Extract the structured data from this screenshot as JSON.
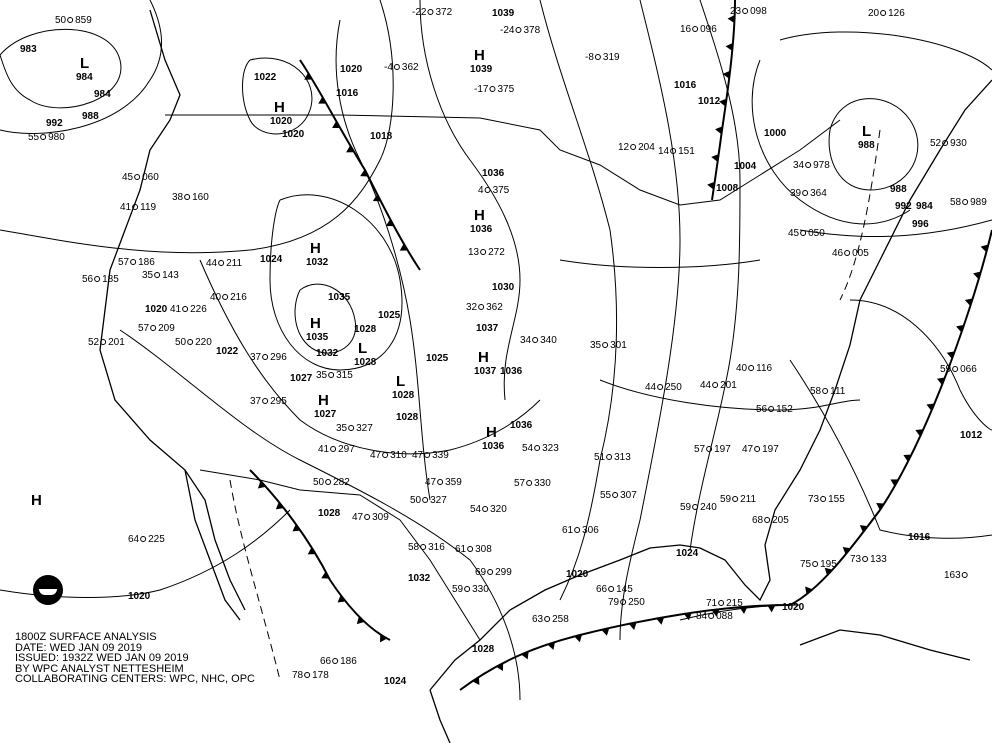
{
  "caption": {
    "title": "1800Z SURFACE ANALYSIS",
    "date": "DATE: WED JAN 09 2019",
    "issued": "ISSUED: 1932Z WED JAN 09 2019",
    "analyst": "BY WPC ANALYST NETTESHEIM",
    "centers": "COLLABORATING CENTERS: WPC, NHC, OPC"
  },
  "logo": "NOAA",
  "colors": {
    "ink": "#000000",
    "background": "#ffffff"
  },
  "pressure_centers": [
    {
      "type": "L",
      "value": "984"
    },
    {
      "type": "H",
      "value": "1020"
    },
    {
      "type": "H",
      "value": "1039"
    },
    {
      "type": "H",
      "value": "1036"
    },
    {
      "type": "H",
      "value": "1032"
    },
    {
      "type": "H",
      "value": "1035"
    },
    {
      "type": "L",
      "value": "1028"
    },
    {
      "type": "L",
      "value": "1028"
    },
    {
      "type": "H",
      "value": "1037"
    },
    {
      "type": "H",
      "value": "1036"
    },
    {
      "type": "H",
      "value": "1027"
    },
    {
      "type": "H",
      "value": ""
    },
    {
      "type": "L",
      "value": "988"
    }
  ],
  "isobar_labels": [
    "983",
    "984",
    "988",
    "992",
    "1022",
    "1020",
    "1016",
    "1018",
    "1020",
    "1039",
    "1036",
    "1024",
    "1035",
    "1025",
    "1028",
    "1032",
    "1037",
    "1036",
    "1025",
    "1028",
    "1027",
    "1022",
    "1020",
    "1030",
    "1036",
    "1028",
    "1032",
    "1020",
    "1024",
    "1028",
    "1024",
    "1020",
    "1016",
    "1012",
    "996",
    "992",
    "984",
    "988",
    "1000",
    "1004",
    "1008",
    "1012",
    "1016",
    "1020"
  ],
  "stations": [
    [
      "50",
      "859"
    ],
    [
      "55",
      "980"
    ],
    [
      "45",
      "060"
    ],
    [
      "41",
      "119"
    ],
    [
      "38",
      "160"
    ],
    [
      "56",
      "185"
    ],
    [
      "57",
      "186"
    ],
    [
      "35",
      "143"
    ],
    [
      "44",
      "211"
    ],
    [
      "40",
      "216"
    ],
    [
      "41",
      "226"
    ],
    [
      "57",
      "209"
    ],
    [
      "52",
      "201"
    ],
    [
      "50",
      "220"
    ],
    [
      "37",
      "296"
    ],
    [
      "37",
      "295"
    ],
    [
      "35",
      "315"
    ],
    [
      "35",
      "327"
    ],
    [
      "41",
      "297"
    ],
    [
      "47",
      "310"
    ],
    [
      "47",
      "339"
    ],
    [
      "47",
      "359"
    ],
    [
      "50",
      "327"
    ],
    [
      "50",
      "282"
    ],
    [
      "47",
      "309"
    ],
    [
      "54",
      "320"
    ],
    [
      "58",
      "316"
    ],
    [
      "61",
      "308"
    ],
    [
      "59",
      "330"
    ],
    [
      "69",
      "299"
    ],
    [
      "61",
      "306"
    ],
    [
      "63",
      "258"
    ],
    [
      "71",
      "215"
    ],
    [
      "73",
      "155"
    ],
    [
      "75",
      "195"
    ],
    [
      "73",
      "133"
    ],
    [
      "163",
      ""
    ],
    [
      "56",
      "152"
    ],
    [
      "58",
      "111"
    ],
    [
      "59",
      "066"
    ],
    [
      "52",
      "930"
    ],
    [
      "58",
      "989"
    ],
    [
      "46",
      "005"
    ],
    [
      "45",
      "050"
    ],
    [
      "39",
      "364"
    ],
    [
      "34",
      "978"
    ],
    [
      "23",
      "098"
    ],
    [
      "20",
      "126"
    ],
    [
      "16",
      "096"
    ],
    [
      "12",
      "204"
    ],
    [
      "14",
      "151"
    ],
    [
      "-4",
      "362"
    ],
    [
      "-22",
      "372"
    ],
    [
      "-24",
      "378"
    ],
    [
      "-8",
      "319"
    ],
    [
      "-17",
      "375"
    ],
    [
      "13",
      "272"
    ],
    [
      "4",
      "375"
    ],
    [
      "32",
      "362"
    ],
    [
      "34",
      "340"
    ],
    [
      "35",
      "301"
    ],
    [
      "44",
      "250"
    ],
    [
      "44",
      "201"
    ],
    [
      "40",
      "116"
    ],
    [
      "47",
      "197"
    ],
    [
      "57",
      "197"
    ],
    [
      "54",
      "323"
    ],
    [
      "57",
      "330"
    ],
    [
      "55",
      "307"
    ],
    [
      "51",
      "313"
    ],
    [
      "59",
      "240"
    ],
    [
      "59",
      "211"
    ],
    [
      "68",
      "205"
    ],
    [
      "66",
      "145"
    ],
    [
      "79",
      "250"
    ],
    [
      "84",
      "088"
    ],
    [
      "64",
      "225"
    ],
    [
      "66",
      "186"
    ],
    [
      "78",
      "178"
    ]
  ]
}
